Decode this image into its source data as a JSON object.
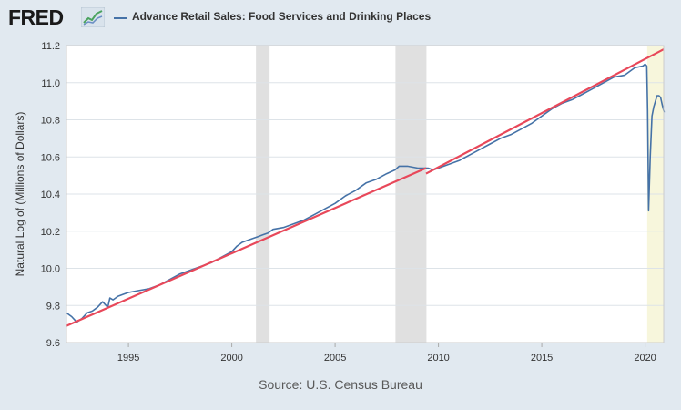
{
  "header": {
    "logo_text": "FRED",
    "logo_icon": "chart-line-icon"
  },
  "chart_data": {
    "type": "line",
    "series": [
      {
        "name": "Advance Retail Sales: Food Services and Drinking Places",
        "color": "#4572a7",
        "x": [
          1992.0,
          1992.25,
          1992.5,
          1992.75,
          1993.0,
          1993.25,
          1993.5,
          1993.75,
          1994.0,
          1994.1,
          1994.25,
          1994.5,
          1994.75,
          1995.0,
          1995.5,
          1996.0,
          1996.5,
          1997.0,
          1997.5,
          1998.0,
          1998.5,
          1999.0,
          1999.5,
          2000.0,
          2000.25,
          2000.5,
          2000.75,
          2001.0,
          2001.25,
          2001.5,
          2001.75,
          2002.0,
          2002.5,
          2003.0,
          2003.5,
          2004.0,
          2004.5,
          2005.0,
          2005.5,
          2006.0,
          2006.25,
          2006.5,
          2007.0,
          2007.5,
          2007.9,
          2008.1,
          2008.5,
          2009.0,
          2009.5,
          2009.75,
          2010.0,
          2010.5,
          2011.0,
          2011.5,
          2012.0,
          2012.5,
          2013.0,
          2013.5,
          2014.0,
          2014.5,
          2015.0,
          2015.5,
          2016.0,
          2016.5,
          2017.0,
          2017.5,
          2018.0,
          2018.5,
          2019.0,
          2019.5,
          2019.9,
          2020.0,
          2020.08,
          2020.12,
          2020.17,
          2020.25,
          2020.33,
          2020.42,
          2020.5,
          2020.58,
          2020.67,
          2020.75,
          2020.83,
          2020.92
        ],
        "values": [
          9.76,
          9.74,
          9.71,
          9.73,
          9.76,
          9.77,
          9.79,
          9.82,
          9.79,
          9.84,
          9.83,
          9.85,
          9.86,
          9.87,
          9.88,
          9.89,
          9.91,
          9.94,
          9.97,
          9.99,
          10.01,
          10.03,
          10.06,
          10.09,
          10.12,
          10.14,
          10.15,
          10.16,
          10.17,
          10.18,
          10.19,
          10.21,
          10.22,
          10.24,
          10.26,
          10.29,
          10.32,
          10.35,
          10.39,
          10.42,
          10.44,
          10.46,
          10.48,
          10.51,
          10.53,
          10.55,
          10.55,
          10.54,
          10.54,
          10.53,
          10.54,
          10.56,
          10.58,
          10.61,
          10.64,
          10.67,
          10.7,
          10.72,
          10.75,
          10.78,
          10.82,
          10.86,
          10.89,
          10.91,
          10.94,
          10.97,
          11.0,
          11.03,
          11.04,
          11.08,
          11.09,
          11.1,
          11.09,
          10.85,
          10.31,
          10.6,
          10.82,
          10.87,
          10.9,
          10.93,
          10.93,
          10.92,
          10.88,
          10.84
        ]
      },
      {
        "name": "",
        "color": "#e8485a",
        "segments": [
          {
            "x": [
              1992.0,
              2009.4
            ],
            "values": [
              9.69,
              10.54
            ]
          },
          {
            "x": [
              2009.4,
              2020.9
            ],
            "values": [
              10.51,
              11.18
            ]
          }
        ]
      }
    ],
    "recessions": [
      [
        2001.17,
        2001.83
      ],
      [
        2007.92,
        2009.42
      ]
    ],
    "recent_highlight": [
      2020.1,
      2020.9
    ],
    "colors": {
      "recession": "#e0e0e0",
      "highlight": "#f7f6dc",
      "grid": "#dde3e8"
    },
    "xlabel": "",
    "ylabel": "Natural Log of (Millions of Dollars)",
    "xlim": [
      1992.0,
      2020.9
    ],
    "ylim": [
      9.6,
      11.2
    ],
    "xticks": [
      1995,
      2000,
      2005,
      2010,
      2015,
      2020
    ],
    "yticks": [
      9.6,
      9.8,
      10.0,
      10.2,
      10.4,
      10.6,
      10.8,
      11.0,
      11.2
    ],
    "ytick_labels": [
      "9.6",
      "9.8",
      "10.0",
      "10.2",
      "10.4",
      "10.6",
      "10.8",
      "11.0",
      "11.2"
    ],
    "grid": true,
    "legend_position": "top-left",
    "source": "Source: U.S. Census Bureau"
  }
}
